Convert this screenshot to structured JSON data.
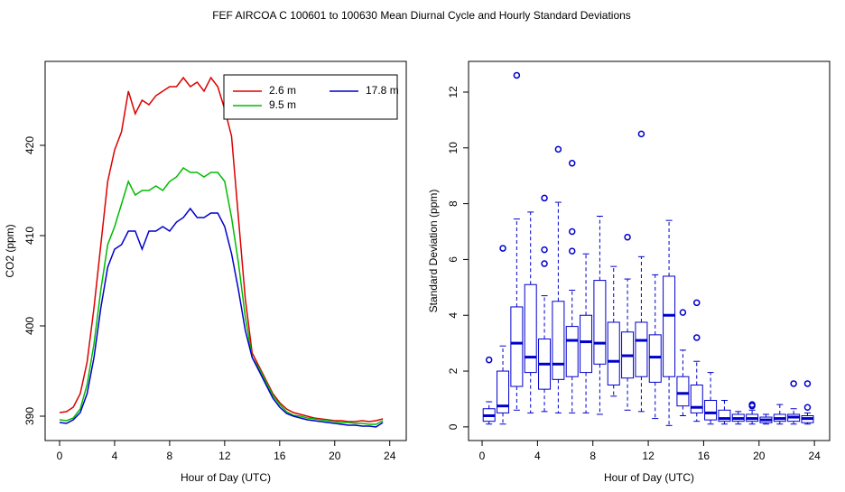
{
  "title": "FEF   AIRCOA C   100601 to 100630   Mean Diurnal Cycle and Hourly Standard Deviations",
  "chart_data": [
    {
      "type": "line",
      "xlabel": "Hour of Day (UTC)",
      "ylabel": "CO2 (ppm)",
      "xlim": [
        -1.05,
        25.2
      ],
      "ylim": [
        387.3,
        429.3
      ],
      "xticks": [
        0,
        4,
        8,
        12,
        16,
        20,
        24
      ],
      "yticks": [
        390,
        400,
        410,
        420
      ],
      "legend": "topright",
      "x": [
        0,
        0.5,
        1,
        1.5,
        2,
        2.5,
        3,
        3.5,
        4,
        4.5,
        5,
        5.5,
        6,
        6.5,
        7,
        7.5,
        8,
        8.5,
        9,
        9.5,
        10,
        10.5,
        11,
        11.5,
        12,
        12.5,
        13,
        13.5,
        14,
        14.5,
        15,
        15.5,
        16,
        16.5,
        17,
        17.5,
        18,
        18.5,
        19,
        19.5,
        20,
        20.5,
        21,
        21.5,
        22,
        22.5,
        23,
        23.5
      ],
      "series": [
        {
          "name": "2.6 m",
          "color": "#dd0000",
          "values": [
            390.4,
            390.5,
            391,
            392.5,
            396,
            402,
            409,
            416,
            419.5,
            421.5,
            426,
            423.5,
            425,
            424.5,
            425.5,
            426,
            426.5,
            426.5,
            427.5,
            426.5,
            427,
            426,
            427.5,
            426.5,
            424,
            421,
            412,
            403,
            397,
            395.5,
            394,
            392.5,
            391.5,
            390.8,
            390.4,
            390.2,
            390,
            389.8,
            389.7,
            389.6,
            389.5,
            389.5,
            389.4,
            389.4,
            389.5,
            389.4,
            389.5,
            389.7
          ]
        },
        {
          "name": "9.5 m",
          "color": "#00bb00",
          "values": [
            389.6,
            389.5,
            389.8,
            390.8,
            393.5,
            398,
            404,
            409,
            411,
            413.5,
            416,
            414.5,
            415,
            415,
            415.5,
            415,
            416,
            416.5,
            417.5,
            417,
            417,
            416.5,
            417,
            417,
            416,
            412,
            407,
            401,
            396.5,
            395.3,
            393.8,
            392.3,
            391.3,
            390.5,
            390.1,
            390,
            389.8,
            389.7,
            389.6,
            389.5,
            389.4,
            389.3,
            389.3,
            389.2,
            389.2,
            389.1,
            389.1,
            389.5
          ]
        },
        {
          "name": "17.8 m",
          "color": "#0000cc",
          "values": [
            389.3,
            389.2,
            389.6,
            390.4,
            392.5,
            396.5,
            402,
            406.5,
            408.5,
            409,
            410.5,
            410.5,
            408.5,
            410.5,
            410.5,
            411,
            410.5,
            411.5,
            412,
            413,
            412,
            412,
            412.5,
            412.5,
            411,
            408,
            404,
            399.5,
            396.5,
            395,
            393.5,
            392,
            391,
            390.3,
            390,
            389.8,
            389.6,
            389.5,
            389.4,
            389.3,
            389.2,
            389.1,
            389,
            389,
            388.9,
            388.9,
            388.8,
            389.3
          ]
        }
      ]
    },
    {
      "type": "box",
      "xlabel": "Hour of Day (UTC)",
      "ylabel": "Standard Deviation (ppm)",
      "xlim": [
        -0.98,
        25.1
      ],
      "ylim": [
        -0.49,
        13.1
      ],
      "xticks": [
        0,
        4,
        8,
        12,
        16,
        20,
        24
      ],
      "yticks": [
        0,
        2,
        4,
        6,
        8,
        10,
        12
      ],
      "color": "#0000cc",
      "x": [
        0.5,
        1.5,
        2.5,
        3.5,
        4.5,
        5.5,
        6.5,
        7.5,
        8.5,
        9.5,
        10.5,
        11.5,
        12.5,
        13.5,
        14.5,
        15.5,
        16.5,
        17.5,
        18.5,
        19.5,
        20.5,
        21.5,
        22.5,
        23.5
      ],
      "min": [
        0.1,
        0.1,
        0.6,
        0.5,
        0.55,
        0.5,
        0.5,
        0.5,
        0.45,
        1.1,
        0.6,
        0.55,
        0.3,
        0.05,
        0.4,
        0.2,
        0.1,
        0.1,
        0.1,
        0.1,
        0.1,
        0.1,
        0.1,
        0.1
      ],
      "q1": [
        0.2,
        0.5,
        1.45,
        1.95,
        1.35,
        1.7,
        1.8,
        1.95,
        2.25,
        1.5,
        1.75,
        1.8,
        1.6,
        1.8,
        0.75,
        0.5,
        0.25,
        0.2,
        0.2,
        0.2,
        0.15,
        0.2,
        0.2,
        0.15
      ],
      "median": [
        0.4,
        0.75,
        3.0,
        2.5,
        2.25,
        2.25,
        3.1,
        3.05,
        3.0,
        2.35,
        2.55,
        3.1,
        2.5,
        4.0,
        1.2,
        0.7,
        0.5,
        0.3,
        0.3,
        0.3,
        0.25,
        0.3,
        0.35,
        0.3
      ],
      "q3": [
        0.65,
        2.0,
        4.3,
        5.1,
        3.15,
        4.5,
        3.6,
        4.0,
        5.25,
        3.75,
        3.4,
        3.75,
        3.3,
        5.4,
        1.8,
        1.5,
        0.95,
        0.6,
        0.45,
        0.45,
        0.35,
        0.45,
        0.45,
        0.4
      ],
      "max": [
        0.9,
        2.9,
        7.45,
        7.7,
        4.7,
        8.05,
        4.9,
        6.2,
        7.55,
        5.75,
        5.3,
        6.1,
        5.45,
        7.4,
        2.75,
        2.35,
        1.95,
        0.95,
        0.55,
        0.6,
        0.45,
        0.8,
        0.65,
        0.5
      ],
      "outliers": [
        [
          2.4
        ],
        [
          6.4
        ],
        [
          12.6
        ],
        [],
        [
          8.2,
          6.35,
          5.85
        ],
        [
          9.95
        ],
        [
          9.45,
          7.0,
          6.3
        ],
        [],
        [],
        [],
        [
          6.8
        ],
        [
          10.5
        ],
        [],
        [],
        [
          4.1
        ],
        [
          4.45,
          3.2
        ],
        [],
        [],
        [],
        [
          0.8,
          0.75
        ],
        [],
        [],
        [
          1.55
        ],
        [
          1.55,
          0.7
        ]
      ]
    }
  ]
}
